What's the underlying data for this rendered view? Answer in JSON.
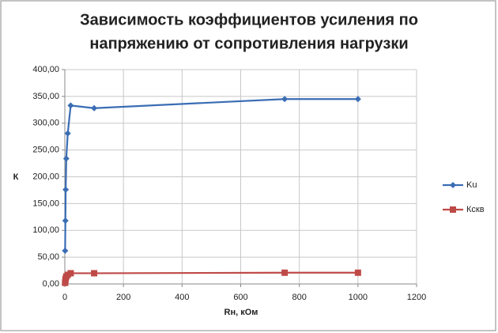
{
  "chart_data": {
    "type": "line",
    "title": [
      "Зависимость коэффициентов усиления по",
      "напряжению от сопротивления нагрузки"
    ],
    "x_label": "Rн, кОм",
    "y_label": "К",
    "x": [
      1,
      2,
      3,
      5,
      10,
      20,
      100,
      750,
      1000
    ],
    "series": [
      {
        "name": "Ku",
        "color": "#3a6db4",
        "marker": "diamond",
        "values": [
          62,
          118,
          176,
          234,
          281,
          333,
          328,
          345,
          345
        ]
      },
      {
        "name": "Кскв",
        "color": "#be4a47",
        "marker": "square",
        "values": [
          2,
          6,
          10,
          14,
          17,
          20,
          20,
          21,
          21
        ]
      }
    ],
    "xlim": [
      0,
      1200
    ],
    "xticks": [
      0,
      200,
      400,
      600,
      800,
      1000,
      1200
    ],
    "ylim": [
      0,
      400
    ],
    "yticks": [
      {
        "value": 0,
        "label": "0,00"
      },
      {
        "value": 50,
        "label": "50,00"
      },
      {
        "value": 100,
        "label": "100,00"
      },
      {
        "value": 150,
        "label": "150,00"
      },
      {
        "value": 200,
        "label": "200,00"
      },
      {
        "value": 250,
        "label": "250,00"
      },
      {
        "value": 300,
        "label": "300,00"
      },
      {
        "value": 350,
        "label": "350,00"
      },
      {
        "value": 400,
        "label": "400,00"
      }
    ],
    "grid": true,
    "legend": "right"
  }
}
